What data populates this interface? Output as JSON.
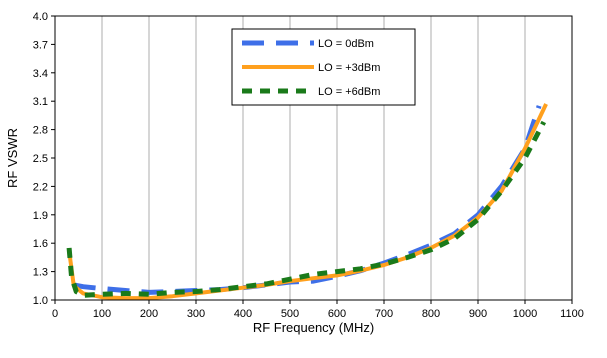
{
  "chart_data": {
    "type": "line",
    "xlabel": "RF Frequency (MHz)",
    "ylabel": "RF VSWR",
    "xlim": [
      0,
      1100
    ],
    "ylim": [
      1.0,
      4.0
    ],
    "x_ticks": [
      "0",
      "100",
      "200",
      "300",
      "400",
      "500",
      "600",
      "700",
      "800",
      "900",
      "1000",
      "1100"
    ],
    "y_ticks": [
      "1.0",
      "1.3",
      "1.6",
      "1.9",
      "2.2",
      "2.5",
      "2.8",
      "3.1",
      "3.4",
      "3.7",
      "4.0"
    ],
    "grid": "vertical",
    "legend_position": "top-center",
    "series": [
      {
        "name": "LO = 0dBm",
        "color": "#3E6FE8",
        "style": "long-dash",
        "x": [
          40,
          60,
          100,
          150,
          200,
          250,
          300,
          350,
          400,
          450,
          500,
          550,
          600,
          650,
          700,
          750,
          800,
          850,
          900,
          950,
          1000,
          1030
        ],
        "y": [
          1.16,
          1.14,
          1.12,
          1.1,
          1.08,
          1.09,
          1.1,
          1.11,
          1.13,
          1.16,
          1.19,
          1.2,
          1.25,
          1.31,
          1.39,
          1.48,
          1.58,
          1.7,
          1.9,
          2.2,
          2.6,
          3.05
        ]
      },
      {
        "name": "LO = +3dBm",
        "color": "#FFA01E",
        "style": "solid",
        "x": [
          32,
          40,
          60,
          100,
          150,
          200,
          250,
          300,
          350,
          400,
          450,
          500,
          550,
          600,
          650,
          700,
          750,
          800,
          850,
          900,
          950,
          1000,
          1045
        ],
        "y": [
          1.45,
          1.15,
          1.07,
          1.03,
          1.02,
          1.02,
          1.04,
          1.07,
          1.1,
          1.13,
          1.16,
          1.2,
          1.23,
          1.26,
          1.31,
          1.37,
          1.45,
          1.55,
          1.68,
          1.87,
          2.15,
          2.6,
          3.07
        ]
      },
      {
        "name": "LO = +6dBm",
        "color": "#1A7A1A",
        "style": "dashed",
        "x": [
          30,
          35,
          45,
          60,
          100,
          150,
          200,
          250,
          300,
          350,
          400,
          450,
          500,
          550,
          600,
          650,
          700,
          750,
          800,
          850,
          900,
          950,
          1000,
          1040
        ],
        "y": [
          1.55,
          1.25,
          1.09,
          1.05,
          1.06,
          1.07,
          1.06,
          1.08,
          1.09,
          1.11,
          1.14,
          1.17,
          1.22,
          1.27,
          1.3,
          1.33,
          1.38,
          1.45,
          1.53,
          1.65,
          1.85,
          2.15,
          2.5,
          2.88
        ]
      }
    ]
  }
}
